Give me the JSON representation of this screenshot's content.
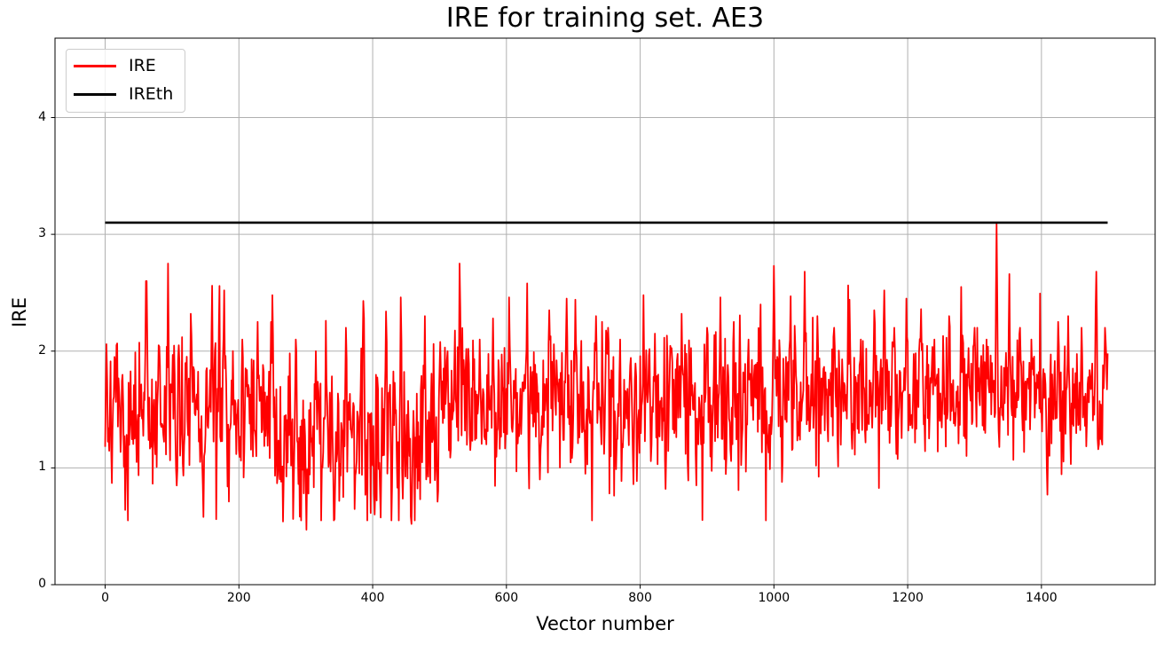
{
  "chart_data": {
    "type": "line",
    "title": "IRE for training set. AE3",
    "xlabel": "Vector number",
    "ylabel": "IRE",
    "xlim": [
      -75,
      1570
    ],
    "ylim": [
      0,
      4.68
    ],
    "xticks": [
      0,
      200,
      400,
      600,
      800,
      1000,
      1200,
      1400
    ],
    "yticks": [
      0,
      1,
      2,
      3,
      4
    ],
    "grid": true,
    "grid_color": "#b0b0b0",
    "axis_color": "#000000",
    "background_color": "#ffffff",
    "legend": {
      "position": "upper left",
      "entries": [
        {
          "label": "IRE",
          "color": "#ff0000"
        },
        {
          "label": "IREth",
          "color": "#000000"
        }
      ]
    },
    "series": [
      {
        "name": "IRE",
        "color": "#ff0000",
        "style": "noisy-line",
        "n_points": 1500,
        "x_start": 0,
        "x_end": 1499,
        "min": 0.47,
        "max": 3.09,
        "seed": 7,
        "clip": [
          0.55,
          2.6
        ],
        "segments": [
          {
            "from": 0,
            "to": 250,
            "mean": 1.45,
            "std": 0.3
          },
          {
            "from": 250,
            "to": 500,
            "mean": 1.3,
            "std": 0.34
          },
          {
            "from": 500,
            "to": 1000,
            "mean": 1.55,
            "std": 0.29
          },
          {
            "from": 1000,
            "to": 1500,
            "mean": 1.63,
            "std": 0.27
          }
        ],
        "anchors": [
          [
            2,
            2.06
          ],
          [
            14,
            1.95
          ],
          [
            30,
            0.64
          ],
          [
            47,
            1.05
          ],
          [
            62,
            2.6
          ],
          [
            80,
            2.05
          ],
          [
            94,
            2.75
          ],
          [
            110,
            2.05
          ],
          [
            128,
            2.32
          ],
          [
            147,
            0.58
          ],
          [
            160,
            2.56
          ],
          [
            178,
            2.52
          ],
          [
            205,
            2.1
          ],
          [
            228,
            2.25
          ],
          [
            250,
            2.48
          ],
          [
            266,
            0.54
          ],
          [
            285,
            2.1
          ],
          [
            301,
            0.47
          ],
          [
            315,
            2.0
          ],
          [
            330,
            2.26
          ],
          [
            342,
            0.55
          ],
          [
            360,
            2.2
          ],
          [
            386,
            2.43
          ],
          [
            403,
            0.6
          ],
          [
            420,
            2.34
          ],
          [
            442,
            2.46
          ],
          [
            458,
            0.52
          ],
          [
            478,
            2.3
          ],
          [
            497,
            0.71
          ],
          [
            512,
            2.0
          ],
          [
            530,
            2.75
          ],
          [
            543,
            2.02
          ],
          [
            560,
            2.1
          ],
          [
            580,
            2.28
          ],
          [
            604,
            2.46
          ],
          [
            631,
            2.58
          ],
          [
            650,
            0.9
          ],
          [
            664,
            2.35
          ],
          [
            690,
            2.45
          ],
          [
            703,
            2.44
          ],
          [
            718,
            0.95
          ],
          [
            734,
            2.3
          ],
          [
            752,
            2.2
          ],
          [
            770,
            2.1
          ],
          [
            790,
            0.86
          ],
          [
            805,
            2.48
          ],
          [
            822,
            2.15
          ],
          [
            838,
            0.82
          ],
          [
            862,
            2.32
          ],
          [
            884,
            0.85
          ],
          [
            900,
            2.2
          ],
          [
            920,
            2.46
          ],
          [
            940,
            2.25
          ],
          [
            962,
            2.1
          ],
          [
            980,
            2.4
          ],
          [
            1000,
            2.73
          ],
          [
            1012,
            0.88
          ],
          [
            1025,
            2.47
          ],
          [
            1046,
            2.68
          ],
          [
            1065,
            2.3
          ],
          [
            1090,
            2.2
          ],
          [
            1113,
            2.44
          ],
          [
            1130,
            2.1
          ],
          [
            1150,
            2.35
          ],
          [
            1165,
            2.52
          ],
          [
            1180,
            2.2
          ],
          [
            1198,
            2.45
          ],
          [
            1220,
            2.36
          ],
          [
            1240,
            2.1
          ],
          [
            1262,
            2.3
          ],
          [
            1280,
            2.55
          ],
          [
            1300,
            2.2
          ],
          [
            1318,
            2.1
          ],
          [
            1333,
            3.09
          ],
          [
            1352,
            2.66
          ],
          [
            1368,
            2.2
          ],
          [
            1385,
            2.1
          ],
          [
            1409,
            0.77
          ],
          [
            1425,
            2.25
          ],
          [
            1440,
            2.3
          ],
          [
            1460,
            2.2
          ],
          [
            1482,
            2.68
          ],
          [
            1495,
            2.2
          ]
        ]
      },
      {
        "name": "IREth",
        "color": "#000000",
        "style": "hline",
        "value": 3.1,
        "x_start": 0,
        "x_end": 1499
      }
    ]
  }
}
